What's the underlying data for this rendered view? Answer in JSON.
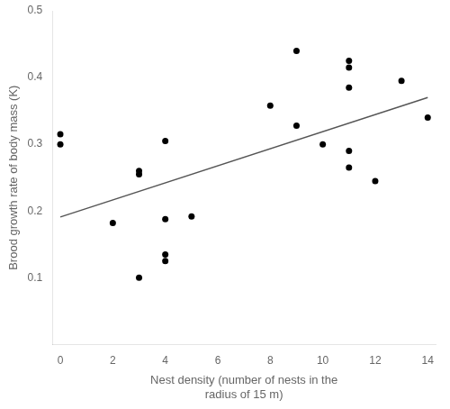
{
  "chart_data": {
    "type": "scatter",
    "xlabel": [
      "Nest density (number of nests in the",
      "radius of 15 m)"
    ],
    "ylabel": "Brood growth rate of body mass (K)",
    "series": [
      {
        "type": "scatter",
        "color": "#000000",
        "x": [
          0,
          0,
          2,
          3,
          3,
          3,
          4,
          4,
          4,
          4,
          5,
          8,
          9,
          9,
          10,
          11,
          11,
          11,
          11,
          11,
          12,
          13,
          14
        ],
        "values": [
          0.315,
          0.3,
          0.182,
          0.26,
          0.255,
          0.1,
          0.305,
          0.188,
          0.135,
          0.125,
          0.192,
          0.358,
          0.44,
          0.328,
          0.3,
          0.425,
          0.415,
          0.385,
          0.29,
          0.265,
          0.245,
          0.395,
          0.34
        ]
      },
      {
        "type": "line",
        "color": "#555555",
        "x": [
          0,
          14
        ],
        "values": [
          0.191,
          0.37
        ]
      }
    ],
    "xlim": [
      -0.3,
      14.3
    ],
    "ylim": [
      0.0,
      0.5
    ],
    "xticks": [
      0,
      2,
      4,
      6,
      8,
      10,
      12,
      14
    ],
    "yticks": [
      0.1,
      0.2,
      0.3,
      0.4,
      0.5
    ],
    "grid": false
  }
}
